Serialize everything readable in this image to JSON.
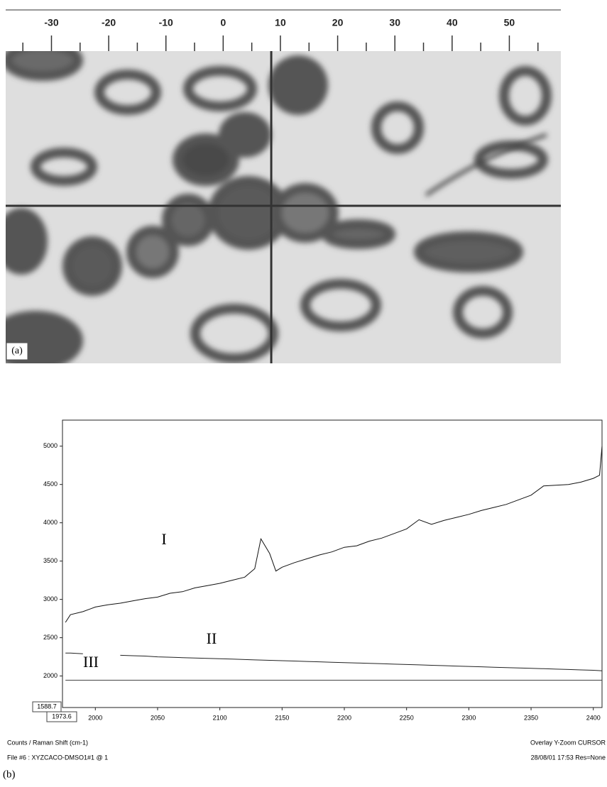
{
  "chart_data": [
    {
      "type": "image",
      "xlim": [
        -38,
        59
      ],
      "xticks": [
        -30,
        -20,
        -10,
        0,
        10,
        20,
        30,
        40,
        50
      ],
      "minor_xticks": [
        -35,
        -25,
        -15,
        -5,
        5,
        15,
        25,
        35,
        45,
        55
      ],
      "crosshair_x": 8.4,
      "panel_label": "(a)"
    },
    {
      "type": "line",
      "panel_label": "(b)",
      "x": [
        1976,
        1980,
        1990,
        2000,
        2010,
        2020,
        2030,
        2040,
        2050,
        2060,
        2070,
        2080,
        2090,
        2100,
        2110,
        2120,
        2128,
        2133,
        2140,
        2145,
        2150,
        2160,
        2170,
        2180,
        2190,
        2200,
        2210,
        2220,
        2230,
        2240,
        2250,
        2260,
        2270,
        2280,
        2290,
        2300,
        2310,
        2320,
        2330,
        2340,
        2350,
        2360,
        2370,
        2380,
        2390,
        2400,
        2405,
        2407
      ],
      "series": [
        {
          "color": "#111111",
          "values": [
            2700,
            2800,
            2840,
            2900,
            2930,
            2950,
            2980,
            3010,
            3030,
            3080,
            3100,
            3150,
            3180,
            3210,
            3250,
            3290,
            3400,
            3790,
            3600,
            3370,
            3420,
            3480,
            3530,
            3580,
            3620,
            3680,
            3700,
            3760,
            3800,
            3860,
            3920,
            4040,
            3980,
            4030,
            4070,
            4110,
            4160,
            4200,
            4240,
            4300,
            4360,
            4480,
            4490,
            4500,
            4530,
            4580,
            4620,
            5000
          ]
        },
        {
          "color": "#222222",
          "values": [
            2300,
            2300,
            2290,
            null,
            null,
            2270,
            2265,
            2260,
            2250,
            2245,
            2240,
            2235,
            2230,
            2225,
            2220,
            2215,
            2210,
            2208,
            2205,
            2203,
            2200,
            2195,
            2190,
            2185,
            2180,
            2175,
            2170,
            2165,
            2160,
            2155,
            2150,
            2145,
            2140,
            2135,
            2130,
            2125,
            2120,
            2115,
            2110,
            2105,
            2100,
            2095,
            2090,
            2085,
            2080,
            2075,
            2070,
            2068
          ]
        },
        {
          "color": "#444444",
          "values": [
            1945,
            1945,
            1945,
            1945,
            1945,
            1945,
            1945,
            1945,
            1945,
            1945,
            1945,
            1945,
            1945,
            1945,
            1945,
            1945,
            1945,
            1945,
            1945,
            1945,
            1945,
            1945,
            1945,
            1945,
            1945,
            1945,
            1945,
            1945,
            1945,
            1945,
            1945,
            1945,
            1945,
            1945,
            1945,
            1945,
            1945,
            1945,
            1945,
            1945,
            1945,
            1945,
            1945,
            1945,
            1945,
            1945,
            1945,
            1945
          ]
        }
      ],
      "annotations": [
        "I",
        "II",
        "III"
      ],
      "xlim": [
        {
          "value": 1973.6,
          "label": "1973.6"
        },
        2407
      ],
      "ylim": [
        {
          "value": 1588.7,
          "label": "1588.7"
        },
        5340
      ],
      "xticks": [
        2000,
        2050,
        2100,
        2150,
        2200,
        2250,
        2300,
        2350,
        2400
      ],
      "yticks": [
        2000,
        2500,
        3000,
        3500,
        4000,
        4500,
        5000
      ],
      "footer": {
        "axis_title": "Counts / Raman Shift (cm-1)",
        "mode": "Overlay Y-Zoom CURSOR",
        "file": "File #6 : XYZCACO-DMSO1#1  @ 1",
        "stamp": "28/08/01  17:53  Res=None"
      }
    }
  ]
}
